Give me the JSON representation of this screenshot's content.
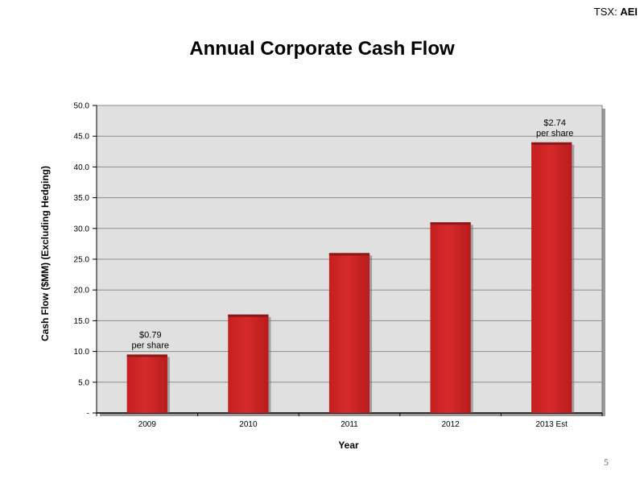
{
  "header": {
    "ticker_prefix": "TSX:",
    "ticker_symbol": "AEI"
  },
  "slide": {
    "page_number": "5"
  },
  "colors": {
    "bar": "#d42828",
    "bar_dark": "#8a1a1a",
    "plot_background": "#e0e0e0",
    "grid": "#8c8c8c"
  },
  "chart_data": {
    "type": "bar",
    "title": "Annual Corporate Cash Flow",
    "xlabel": "Year",
    "ylabel": "Cash Flow ($MM) (Excluding Hedging)",
    "categories": [
      "2009",
      "2010",
      "2011",
      "2012",
      "2013 Est"
    ],
    "values": [
      9.5,
      16.0,
      26.0,
      31.0,
      44.0
    ],
    "ylim": [
      0,
      50
    ],
    "yticks": [
      "-",
      "5.0",
      "10.0",
      "15.0",
      "20.0",
      "25.0",
      "30.0",
      "35.0",
      "40.0",
      "45.0",
      "50.0"
    ],
    "grid": true,
    "legend": "none",
    "annotations": [
      {
        "category": "2009",
        "lines": [
          "$0.79",
          "per share"
        ]
      },
      {
        "category": "2013 Est",
        "lines": [
          "$2.74",
          "per share"
        ]
      }
    ]
  }
}
